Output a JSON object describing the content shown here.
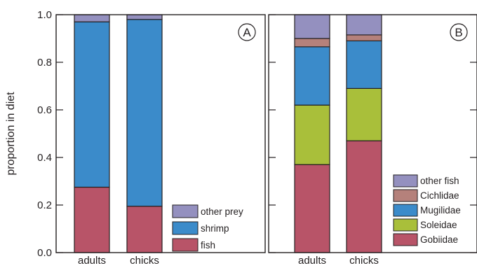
{
  "chart_data": [
    {
      "type": "bar",
      "stacked": true,
      "panel_label": "A",
      "categories": [
        "adults",
        "chicks"
      ],
      "ylabel": "proportion in diet",
      "ylim": [
        0,
        1
      ],
      "yticks": [
        "0.0",
        "0.2",
        "0.4",
        "0.6",
        "0.8",
        "1.0"
      ],
      "legend_placement": "bottom-right",
      "series": [
        {
          "name": "fish",
          "color": "#b85468",
          "values": [
            0.275,
            0.195
          ]
        },
        {
          "name": "shrimp",
          "color": "#3b8bca",
          "values": [
            0.695,
            0.785
          ]
        },
        {
          "name": "other prey",
          "color": "#9490bf",
          "values": [
            0.03,
            0.02
          ]
        }
      ]
    },
    {
      "type": "bar",
      "stacked": true,
      "panel_label": "B",
      "categories": [
        "adults",
        "chicks"
      ],
      "ylim": [
        0,
        1
      ],
      "legend_placement": "bottom-right",
      "series": [
        {
          "name": "Gobiidae",
          "color": "#b85468",
          "values": [
            0.37,
            0.47
          ]
        },
        {
          "name": "Soleidae",
          "color": "#a9bf3a",
          "values": [
            0.25,
            0.22
          ]
        },
        {
          "name": "Mugilidae",
          "color": "#3b8bca",
          "values": [
            0.245,
            0.2
          ]
        },
        {
          "name": "Cichlidae",
          "color": "#b5817b",
          "values": [
            0.035,
            0.025
          ]
        },
        {
          "name": "other fish",
          "color": "#9490bf",
          "values": [
            0.1,
            0.085
          ]
        }
      ]
    }
  ]
}
